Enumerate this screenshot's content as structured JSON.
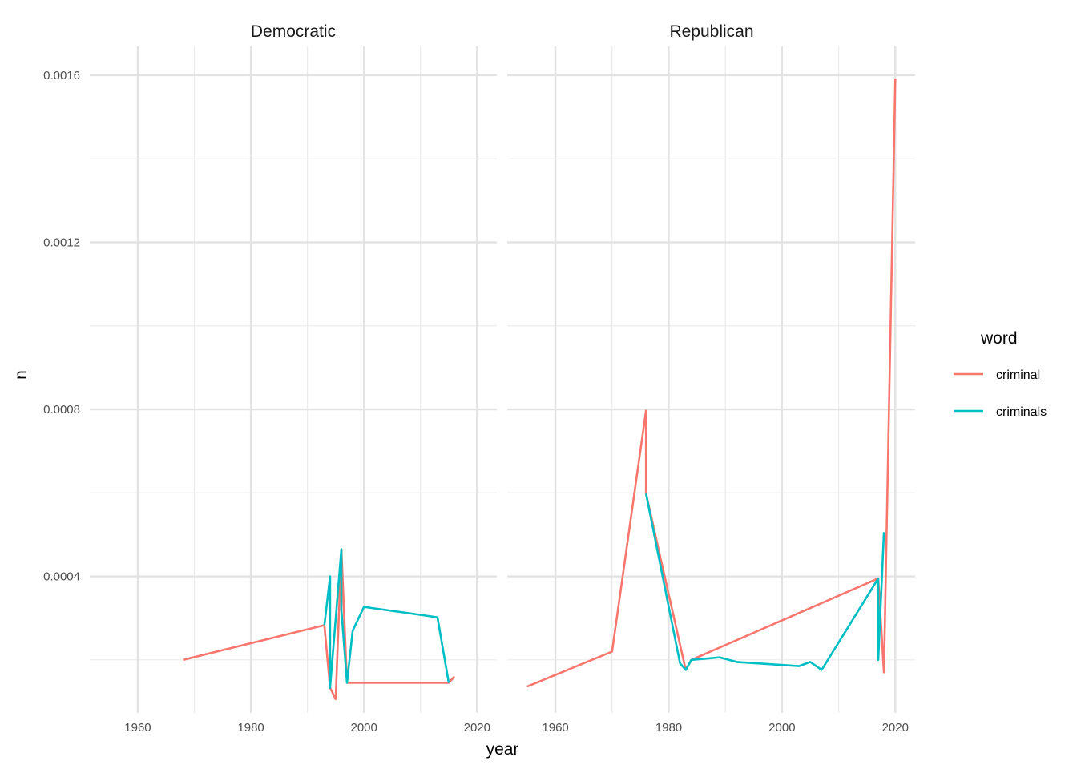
{
  "chart_data": {
    "type": "line",
    "xlabel": "year",
    "ylabel": "n",
    "xlim": [
      1951.5,
      2023.5
    ],
    "ylim": [
      7.3e-05,
      0.001669
    ],
    "x_ticks": [
      1960,
      1980,
      2000,
      2020
    ],
    "x_tick_labels": [
      "1960",
      "1980",
      "2000",
      "2020"
    ],
    "y_ticks": [
      0.0004,
      0.0008,
      0.0012,
      0.0016
    ],
    "y_tick_labels": [
      "0.0004",
      "0.0008",
      "0.0012",
      "0.0016"
    ],
    "grid": true,
    "legend": {
      "title": "word",
      "position": "right",
      "entries": [
        {
          "label": "criminal",
          "color": "#F8766D"
        },
        {
          "label": "criminals",
          "color": "#00BFC4"
        }
      ]
    },
    "panels": [
      {
        "name": "Democratic",
        "series": [
          {
            "name": "criminal",
            "color": "#F8766D",
            "x": [
              1968,
              1993,
              1994,
              1995,
              1996,
              1997,
              2015,
              2016
            ],
            "y": [
              0.0002,
              0.000283,
              0.000133,
              0.000106,
              0.000465,
              0.000145,
              0.000145,
              0.00016
            ]
          },
          {
            "name": "criminals",
            "color": "#00BFC4",
            "x": [
              1993,
              1994,
              1994,
              1996,
              1996,
              1997,
              1998,
              2000,
              2013,
              2015
            ],
            "y": [
              0.000283,
              0.0004,
              0.000133,
              0.000465,
              0.00032,
              0.000145,
              0.00027,
              0.000327,
              0.000302,
              0.000145
            ]
          }
        ]
      },
      {
        "name": "Republican",
        "series": [
          {
            "name": "criminal",
            "color": "#F8766D",
            "x": [
              1955,
              1970,
              1976,
              1976,
              1983,
              1984,
              2017,
              2018,
              2020
            ],
            "y": [
              0.000136,
              0.00022,
              0.000797,
              0.000598,
              0.000176,
              0.0002,
              0.000395,
              0.00017,
              0.001592
            ]
          },
          {
            "name": "criminals",
            "color": "#00BFC4",
            "x": [
              1976,
              1982,
              1983,
              1984,
              1989,
              1992,
              2003,
              2005,
              2007,
              2017,
              2017,
              2018
            ],
            "y": [
              0.000598,
              0.000192,
              0.000176,
              0.0002,
              0.000206,
              0.000195,
              0.000185,
              0.000195,
              0.000176,
              0.000395,
              0.0002,
              0.000506
            ]
          }
        ]
      }
    ]
  }
}
